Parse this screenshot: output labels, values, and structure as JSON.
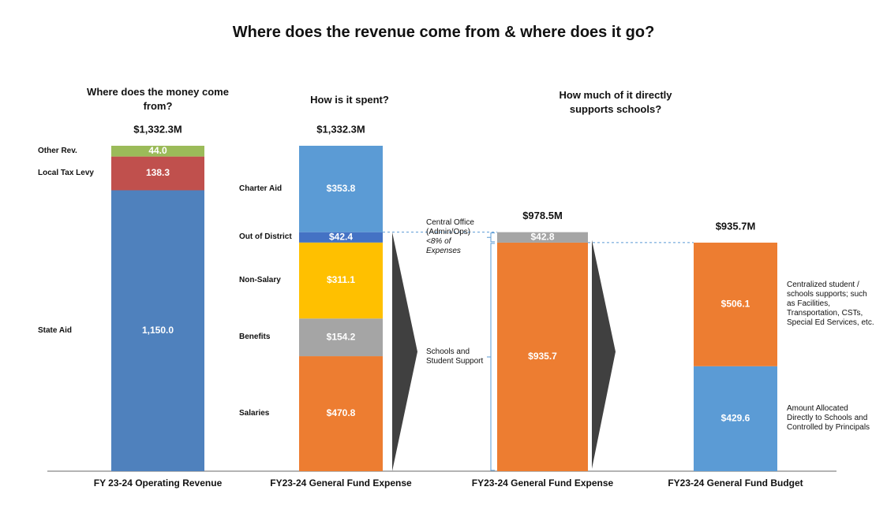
{
  "chart_data": {
    "type": "stacked_bar",
    "title": "Where does the revenue come from & where does it go?",
    "columns": [
      {
        "heading": "Where does the money come from?",
        "total": 1332.3,
        "total_label": "$1,332.3M",
        "label": "FY 23-24 Operating Revenue",
        "segments": [
          {
            "name": "State Aid",
            "value": 1150.0,
            "value_label": "1,150.0",
            "color": "#4f81bd"
          },
          {
            "name": "Local Tax Levy",
            "value": 138.3,
            "value_label": "138.3",
            "color": "#c0504d"
          },
          {
            "name": "Other Rev.",
            "value": 44.0,
            "value_label": "44.0",
            "color": "#9bbb59"
          }
        ]
      },
      {
        "heading": "How is it spent?",
        "total": 1332.3,
        "total_label": "$1,332.3M",
        "label": "FY23-24 General Fund Expense",
        "segments": [
          {
            "name": "Salaries",
            "value": 470.8,
            "value_label": "$470.8",
            "color": "#ed7d31"
          },
          {
            "name": "Benefits",
            "value": 154.2,
            "value_label": "$154.2",
            "color": "#a5a5a5"
          },
          {
            "name": "Non-Salary",
            "value": 311.1,
            "value_label": "$311.1",
            "color": "#ffc000"
          },
          {
            "name": "Out of District",
            "value": 42.4,
            "value_label": "$42.4",
            "color": "#4472c4"
          },
          {
            "name": "Charter Aid",
            "value": 353.8,
            "value_label": "$353.8",
            "color": "#5b9bd5"
          }
        ]
      },
      {
        "heading": "How much of it directly supports schools?",
        "total": 978.5,
        "total_label": "$978.5M",
        "label": "FY23-24 General Fund Expense",
        "segments": [
          {
            "name": "Schools and Student Support",
            "value": 935.7,
            "value_label": "$935.7",
            "color": "#ed7d31"
          },
          {
            "name": "Central Office (Admin/Ops)",
            "note": "<8% of Expenses",
            "value": 42.8,
            "value_label": "$42.8",
            "color": "#a5a5a5"
          }
        ]
      },
      {
        "total": 935.7,
        "total_label": "$935.7M",
        "label": "FY23-24 General Fund Budget",
        "segments": [
          {
            "name": "Amount Allocated Directly to Schools and Controlled by Principals",
            "value": 429.6,
            "value_label": "$429.6",
            "color": "#5b9bd5"
          },
          {
            "name": "Centralized student / schools supports; such as Facilities, Transportation, CSTs, Special Ed Services, etc.",
            "value": 506.1,
            "value_label": "$506.1",
            "color": "#ed7d31"
          }
        ]
      }
    ]
  }
}
